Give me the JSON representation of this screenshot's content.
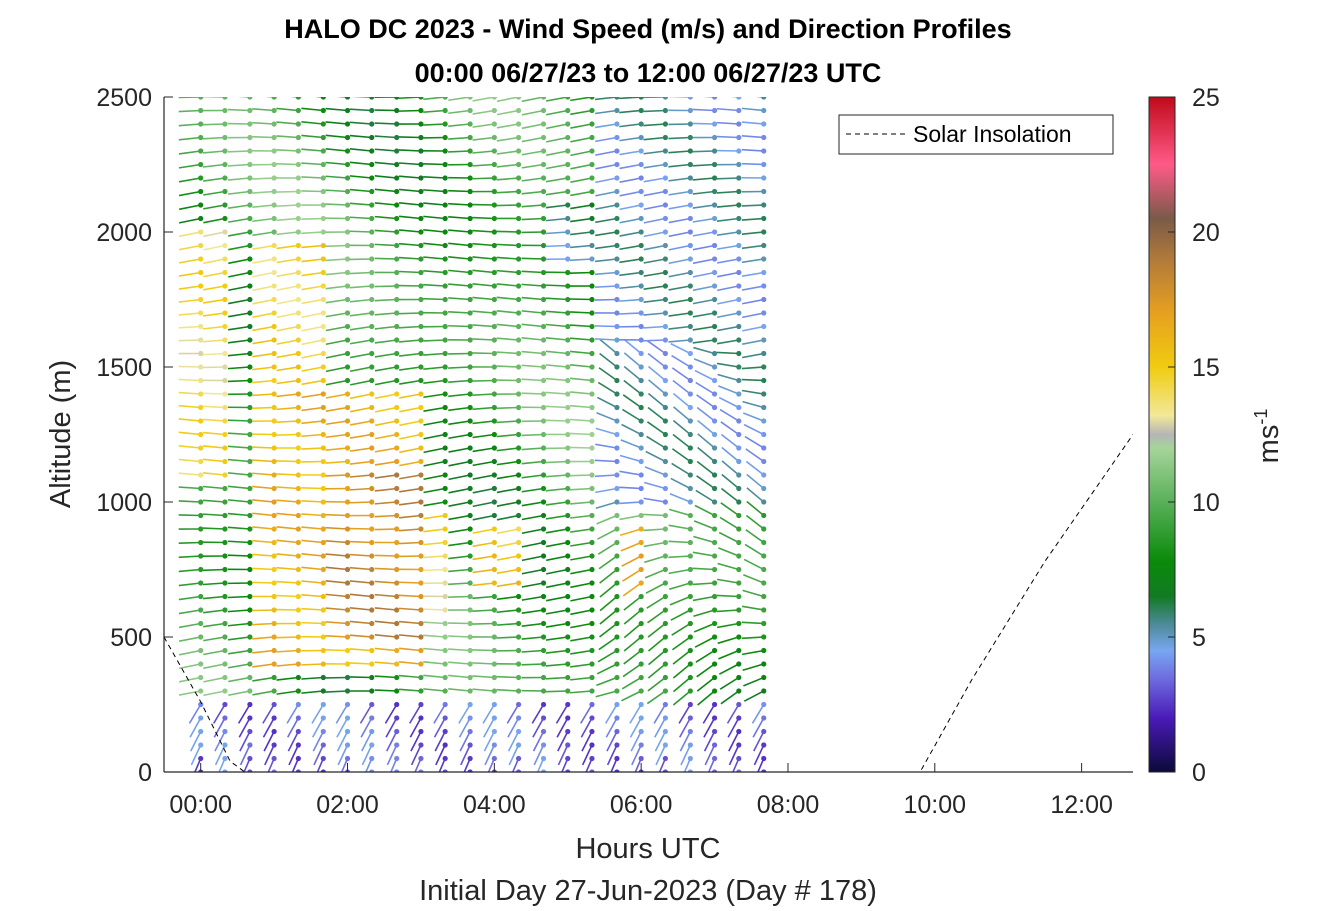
{
  "chart_data": {
    "type": "wind-barb-profile",
    "title": "HALO DC 2023 - Wind Speed (m/s) and Direction Profiles",
    "subtitle": "00:00 06/27/23 to 12:00 06/27/23  UTC",
    "xlabel": "Hours UTC",
    "xlabel2": "Initial Day 27-Jun-2023 (Day # 178)",
    "ylabel": "Altitude (m)",
    "xlim": [
      -0.5,
      12.7
    ],
    "ylim": [
      0,
      2500
    ],
    "x_ticks": [
      0,
      2,
      4,
      6,
      8,
      10,
      12
    ],
    "x_tick_labels": [
      "00:00",
      "02:00",
      "04:00",
      "06:00",
      "08:00",
      "10:00",
      "12:00"
    ],
    "y_ticks": [
      0,
      500,
      1000,
      1500,
      2000,
      2500
    ],
    "y_tick_labels": [
      "0",
      "500",
      "1000",
      "1500",
      "2000",
      "2500"
    ],
    "profile_times_hours": [
      0.0,
      0.33,
      0.67,
      1.0,
      1.33,
      1.67,
      2.0,
      2.33,
      2.67,
      3.0,
      3.33,
      3.67,
      4.0,
      4.33,
      4.67,
      5.0,
      5.33,
      5.67,
      6.0,
      6.33,
      6.67,
      7.0,
      7.33,
      7.67
    ],
    "altitude_step_m": 50,
    "profile_top_m": 2500,
    "speed_regions": [
      {
        "t0": 0.0,
        "t1": 0.5,
        "z0": 1100,
        "z1": 2000,
        "speed": 14
      },
      {
        "t0": 1.0,
        "t1": 1.9,
        "z0": 1200,
        "z1": 1950,
        "speed": 14.5
      },
      {
        "t0": 1.0,
        "t1": 3.2,
        "z0": 400,
        "z1": 1400,
        "speed": 16
      },
      {
        "t0": 2.0,
        "t1": 3.0,
        "z0": 500,
        "z1": 1100,
        "speed": 18
      },
      {
        "t0": 3.2,
        "t1": 3.6,
        "z0": 600,
        "z1": 950,
        "speed": 14
      },
      {
        "t0": 4.0,
        "t1": 4.5,
        "z0": 700,
        "z1": 900,
        "speed": 15
      },
      {
        "t0": 5.9,
        "t1": 6.1,
        "z0": 700,
        "z1": 900,
        "speed": 16
      },
      {
        "t0": 0.0,
        "t1": 8.0,
        "z0": 0,
        "z1": 250,
        "speed": 3.5
      },
      {
        "t0": 5.6,
        "t1": 8.0,
        "z0": 1000,
        "z1": 2500,
        "speed": 5
      },
      {
        "t0": 5.0,
        "t1": 5.6,
        "z0": 1900,
        "z1": 2100,
        "speed": 5.5
      }
    ],
    "colorbar": {
      "min": 0,
      "max": 25,
      "ticks": [
        0,
        5,
        10,
        15,
        20,
        25
      ],
      "tick_labels": [
        "0",
        "5",
        "10",
        "15",
        "20",
        "25"
      ],
      "label": "ms",
      "label_exponent": "-1",
      "stops": [
        {
          "v": 0,
          "c": "#0b0a38"
        },
        {
          "v": 2,
          "c": "#4a1ab8"
        },
        {
          "v": 3.5,
          "c": "#6f6ee0"
        },
        {
          "v": 4.5,
          "c": "#78a6f0"
        },
        {
          "v": 5.5,
          "c": "#4b8a96"
        },
        {
          "v": 6.5,
          "c": "#127a24"
        },
        {
          "v": 7.8,
          "c": "#0a8a0a"
        },
        {
          "v": 10,
          "c": "#5ab05a"
        },
        {
          "v": 12,
          "c": "#a6d49a"
        },
        {
          "v": 12.5,
          "c": "#b5b5b5"
        },
        {
          "v": 13.2,
          "c": "#f2e89a"
        },
        {
          "v": 15,
          "c": "#f0cc10"
        },
        {
          "v": 17,
          "c": "#e6a020"
        },
        {
          "v": 19,
          "c": "#b07a3a"
        },
        {
          "v": 20.5,
          "c": "#7a5a48"
        },
        {
          "v": 22.5,
          "c": "#ff5a88"
        },
        {
          "v": 25,
          "c": "#c00a1a"
        }
      ]
    },
    "legend": {
      "entries": [
        "Solar Insolation"
      ],
      "placement": "top-right"
    },
    "solar_insolation_curve": {
      "x": [
        -0.5,
        0.0,
        0.4,
        0.6,
        2.0,
        4.0,
        6.0,
        8.0,
        9.8,
        10.5,
        11.5,
        12.7
      ],
      "y": [
        500,
        260,
        40,
        0,
        0,
        0,
        0,
        0,
        0,
        340,
        780,
        1250
      ]
    }
  }
}
